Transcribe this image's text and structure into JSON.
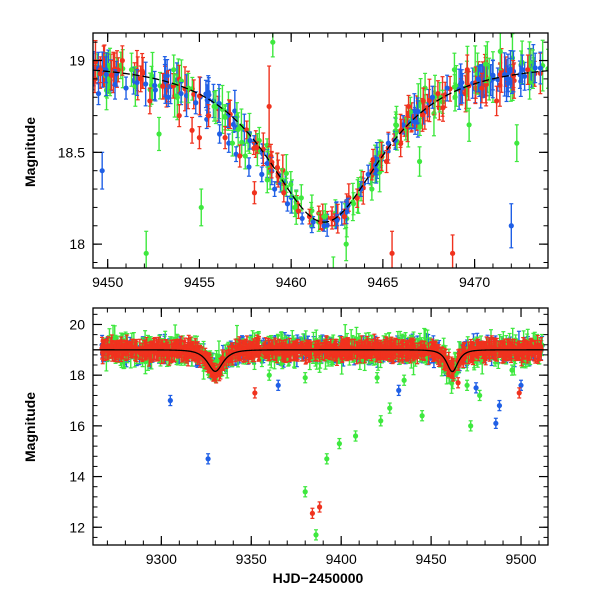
{
  "colors": {
    "blue": "#1f5fe6",
    "green": "#3ee83e",
    "red": "#f0321e",
    "model": "#000000"
  },
  "chart_data": [
    {
      "type": "scatter",
      "title": "",
      "xlabel": "",
      "ylabel": "Magnitude",
      "xlim": [
        9449.2,
        9474.0
      ],
      "ylim": [
        19.15,
        17.87
      ],
      "y_inverted": true,
      "x_ticks": [
        9450,
        9455,
        9460,
        9465,
        9470
      ],
      "y_ticks": [
        18,
        18.5,
        19
      ],
      "x_tick_labels": [
        "9450",
        "9455",
        "9460",
        "9465",
        "9470"
      ],
      "y_tick_labels": [
        "18",
        "18.5",
        "19"
      ],
      "model_curve": {
        "baseline": 18.98,
        "amplitude": 0.86,
        "t0": 9461.8,
        "tE": 4.4
      },
      "series": [
        {
          "name": "blue",
          "color": "#1f5fe6",
          "points": [
            [
              9449.5,
              18.82,
              0.06
            ],
            [
              9449.9,
              18.95,
              0.07
            ],
            [
              9450.4,
              18.87,
              0.08
            ],
            [
              9451.0,
              18.85,
              0.06
            ],
            [
              9451.6,
              18.88,
              0.07
            ],
            [
              9452.6,
              18.84,
              0.06
            ],
            [
              9453.3,
              18.8,
              0.05
            ],
            [
              9454.0,
              18.82,
              0.06
            ],
            [
              9454.8,
              18.77,
              0.06
            ],
            [
              9455.4,
              18.68,
              0.05
            ],
            [
              9456.1,
              18.6,
              0.05
            ],
            [
              9457.0,
              18.49,
              0.04
            ],
            [
              9457.7,
              18.42,
              0.05
            ],
            [
              9458.4,
              18.38,
              0.04
            ],
            [
              9459.1,
              18.3,
              0.04
            ],
            [
              9459.8,
              18.22,
              0.04
            ],
            [
              9460.6,
              18.14,
              0.03
            ],
            [
              9461.2,
              18.12,
              0.03
            ],
            [
              9461.8,
              18.1,
              0.03
            ],
            [
              9462.5,
              18.13,
              0.03
            ],
            [
              9463.1,
              18.21,
              0.04
            ],
            [
              9463.8,
              18.3,
              0.04
            ],
            [
              9464.6,
              18.43,
              0.05
            ],
            [
              9465.3,
              18.55,
              0.05
            ],
            [
              9466.1,
              18.65,
              0.05
            ],
            [
              9466.9,
              18.72,
              0.06
            ],
            [
              9467.7,
              18.8,
              0.06
            ],
            [
              9468.5,
              18.85,
              0.07
            ],
            [
              9469.3,
              18.88,
              0.07
            ],
            [
              9470.2,
              18.9,
              0.07
            ],
            [
              9471.0,
              18.92,
              0.08
            ],
            [
              9471.8,
              18.9,
              0.07
            ],
            [
              9472.6,
              18.95,
              0.08
            ],
            [
              9473.3,
              18.96,
              0.08
            ],
            [
              9449.7,
              18.4,
              0.1
            ],
            [
              9472.0,
              18.1,
              0.12
            ],
            [
              9456.6,
              18.55,
              0.05
            ],
            [
              9464.2,
              18.38,
              0.05
            ]
          ]
        },
        {
          "name": "green",
          "color": "#3ee83e",
          "points": [
            [
              9450.1,
              18.9,
              0.08
            ],
            [
              9451.3,
              18.95,
              0.09
            ],
            [
              9452.1,
              17.95,
              0.12
            ],
            [
              9452.8,
              18.6,
              0.09
            ],
            [
              9453.6,
              18.95,
              0.08
            ],
            [
              9454.4,
              18.85,
              0.08
            ],
            [
              9455.1,
              18.2,
              0.1
            ],
            [
              9455.8,
              18.75,
              0.08
            ],
            [
              9456.8,
              18.55,
              0.07
            ],
            [
              9457.5,
              18.48,
              0.07
            ],
            [
              9458.7,
              18.35,
              0.07
            ],
            [
              9459.5,
              18.35,
              0.06
            ],
            [
              9460.2,
              18.2,
              0.05
            ],
            [
              9461.5,
              18.12,
              0.05
            ],
            [
              9462.3,
              17.85,
              0.08
            ],
            [
              9463.4,
              18.22,
              0.06
            ],
            [
              9464.4,
              18.3,
              0.06
            ],
            [
              9465.7,
              18.65,
              0.07
            ],
            [
              9466.5,
              18.72,
              0.08
            ],
            [
              9467.3,
              18.85,
              0.08
            ],
            [
              9468.1,
              18.8,
              0.08
            ],
            [
              9468.9,
              18.95,
              0.09
            ],
            [
              9469.7,
              18.65,
              0.09
            ],
            [
              9470.6,
              18.98,
              0.1
            ],
            [
              9471.4,
              19.05,
              0.1
            ],
            [
              9472.3,
              18.55,
              0.1
            ],
            [
              9473.0,
              18.88,
              0.09
            ],
            [
              9459.0,
              19.1,
              0.08
            ],
            [
              9463.0,
              18.0,
              0.09
            ],
            [
              9467.0,
              18.45,
              0.08
            ]
          ]
        },
        {
          "name": "red",
          "color": "#f0321e",
          "points": [
            [
              9449.6,
              18.95,
              0.07
            ],
            [
              9450.2,
              18.92,
              0.08
            ],
            [
              9451.8,
              18.9,
              0.07
            ],
            [
              9452.3,
              18.78,
              0.07
            ],
            [
              9453.0,
              18.86,
              0.07
            ],
            [
              9453.9,
              18.7,
              0.06
            ],
            [
              9454.6,
              18.62,
              0.07
            ],
            [
              9455.5,
              18.7,
              0.06
            ],
            [
              9456.4,
              18.58,
              0.06
            ],
            [
              9457.2,
              18.48,
              0.06
            ],
            [
              9458.0,
              18.28,
              0.06
            ],
            [
              9458.8,
              18.75,
              0.22
            ],
            [
              9459.6,
              18.28,
              0.05
            ],
            [
              9460.4,
              18.18,
              0.04
            ],
            [
              9461.0,
              18.15,
              0.04
            ],
            [
              9461.6,
              18.12,
              0.04
            ],
            [
              9462.2,
              18.14,
              0.04
            ],
            [
              9462.9,
              18.15,
              0.04
            ],
            [
              9463.6,
              18.25,
              0.05
            ],
            [
              9464.4,
              18.4,
              0.05
            ],
            [
              9465.2,
              18.45,
              0.06
            ],
            [
              9465.5,
              17.95,
              0.12
            ],
            [
              9466.4,
              18.75,
              0.06
            ],
            [
              9467.2,
              18.78,
              0.07
            ],
            [
              9468.0,
              18.82,
              0.07
            ],
            [
              9468.8,
              17.95,
              0.1
            ],
            [
              9469.6,
              18.95,
              0.08
            ],
            [
              9470.4,
              18.85,
              0.08
            ],
            [
              9471.2,
              18.78,
              0.08
            ],
            [
              9472.1,
              18.92,
              0.08
            ],
            [
              9472.9,
              18.95,
              0.08
            ],
            [
              9450.8,
              19.0,
              0.08
            ],
            [
              9455.0,
              18.58,
              0.06
            ],
            [
              9466.0,
              18.62,
              0.06
            ]
          ]
        }
      ]
    },
    {
      "type": "scatter",
      "title": "",
      "xlabel": "HJD−2450000",
      "ylabel": "Magnitude",
      "xlim": [
        9262,
        9515
      ],
      "ylim": [
        20.65,
        11.3
      ],
      "y_inverted": true,
      "x_ticks": [
        9300,
        9350,
        9400,
        9450,
        9500
      ],
      "y_ticks": [
        12,
        14,
        16,
        18,
        20
      ],
      "x_tick_labels": [
        "9300",
        "9350",
        "9400",
        "9450",
        "9500"
      ],
      "y_tick_labels": [
        "12",
        "14",
        "16",
        "18",
        "20"
      ],
      "events": [
        {
          "t0": 9330,
          "amplitude": 0.85,
          "tE": 6
        },
        {
          "t0": 9461.8,
          "amplitude": 0.86,
          "tE": 4.4
        }
      ],
      "baseline": 19.0,
      "outliers": {
        "blue": [
          [
            9326,
            14.7
          ],
          [
            9305,
            17.0
          ],
          [
            9365,
            17.6
          ],
          [
            9432,
            17.4
          ],
          [
            9486,
            16.1
          ],
          [
            9488,
            16.8
          ],
          [
            9500,
            17.6
          ],
          [
            9475,
            17.5
          ]
        ],
        "green": [
          [
            9380,
            13.4
          ],
          [
            9386,
            11.7
          ],
          [
            9392,
            14.7
          ],
          [
            9399,
            15.3
          ],
          [
            9408,
            15.6
          ],
          [
            9422,
            16.2
          ],
          [
            9427,
            16.7
          ],
          [
            9445,
            16.4
          ],
          [
            9472,
            16.0
          ],
          [
            9477,
            17.2
          ],
          [
            9470,
            17.6
          ],
          [
            9435,
            17.8
          ],
          [
            9495,
            18.2
          ],
          [
            9420,
            17.9
          ],
          [
            9380,
            17.9
          ],
          [
            9360,
            18.0
          ]
        ],
        "red": [
          [
            9384,
            12.55
          ],
          [
            9388,
            12.8
          ],
          [
            9352,
            17.3
          ],
          [
            9499,
            17.3
          ],
          [
            9465,
            17.7
          ]
        ]
      }
    }
  ]
}
